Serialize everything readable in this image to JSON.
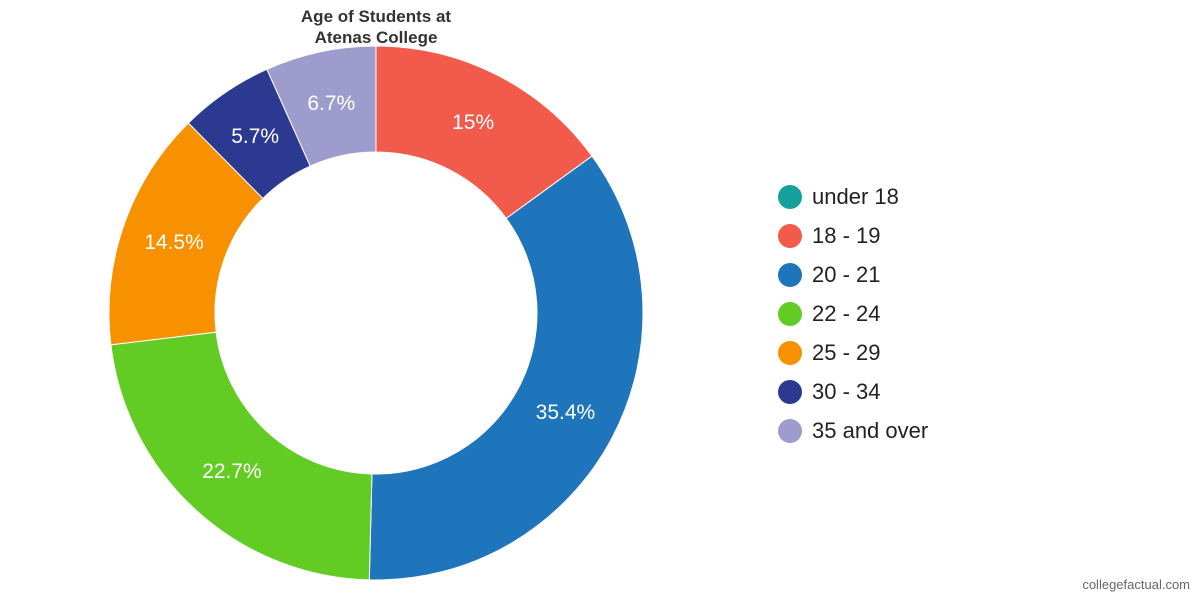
{
  "chart_data": {
    "type": "pie",
    "donut": true,
    "title_lines": [
      "Age of Students at",
      "Atenas College"
    ],
    "categories": [
      "under 18",
      "18 - 19",
      "20 - 21",
      "22 - 24",
      "25 - 29",
      "30 - 34",
      "35 and over"
    ],
    "values": [
      0,
      15,
      35.4,
      22.7,
      14.5,
      5.7,
      6.7
    ],
    "data_labels": [
      "",
      "15%",
      "35.4%",
      "22.7%",
      "14.5%",
      "5.7%",
      "6.7%"
    ],
    "unit": "%",
    "colors": [
      "#14a19b",
      "#f25b4b",
      "#1f75bc",
      "#62cc24",
      "#f79100",
      "#2b3990",
      "#9e9ccd"
    ],
    "legend_position": "right"
  },
  "credit": "collegefactual.com"
}
